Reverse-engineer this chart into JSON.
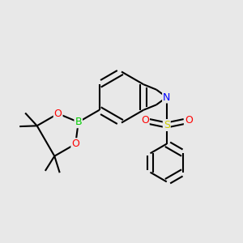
{
  "bg_color": "#e8e8e8",
  "bond_color": "#000000",
  "N_color": "#0000ff",
  "O_color": "#ff0000",
  "B_color": "#00cc00",
  "S_color": "#cccc00",
  "line_width": 1.5,
  "figsize": [
    3.0,
    3.0
  ],
  "dpi": 100,
  "xlim": [
    0,
    10
  ],
  "ylim": [
    0,
    10
  ]
}
